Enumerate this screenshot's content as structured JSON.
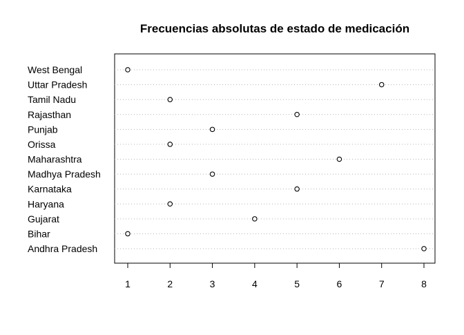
{
  "chart_data": {
    "type": "scatter",
    "subtype": "dotchart",
    "title": "Frecuencias absolutas de estado de medicación",
    "xlabel": "",
    "ylabel": "",
    "xlim": [
      1,
      8
    ],
    "xticks": [
      1,
      2,
      3,
      4,
      5,
      6,
      7,
      8
    ],
    "grid": "dotted horizontal guide lines",
    "categories": [
      "Andhra Pradesh",
      "Bihar",
      "Gujarat",
      "Haryana",
      "Karnataka",
      "Madhya Pradesh",
      "Maharashtra",
      "Orissa",
      "Punjab",
      "Rajasthan",
      "Tamil Nadu",
      "Uttar Pradesh",
      "West Bengal"
    ],
    "values": [
      8,
      1,
      4,
      2,
      5,
      3,
      6,
      2,
      3,
      5,
      2,
      7,
      1
    ]
  }
}
